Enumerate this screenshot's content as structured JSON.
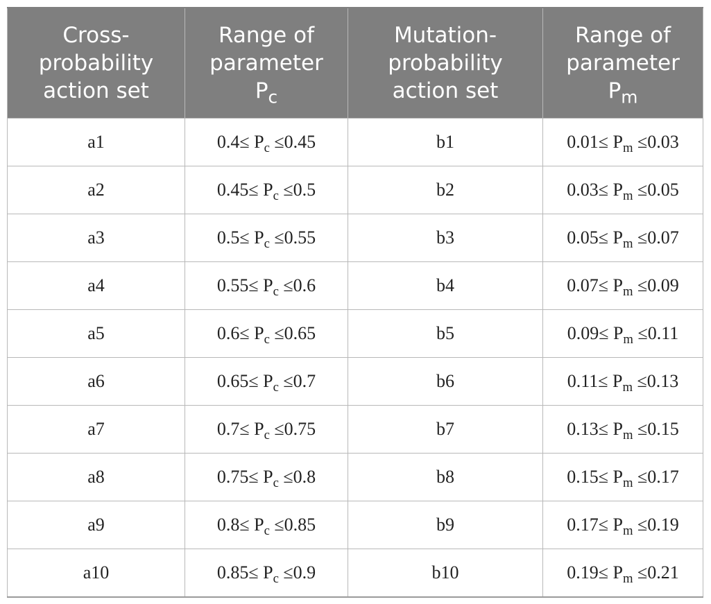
{
  "table": {
    "headers": [
      {
        "main": "Cross-\nprobability\naction set",
        "sub": ""
      },
      {
        "main": "Range of\nparameter\nP",
        "sub": "c"
      },
      {
        "main": "Mutation-\nprobability\naction set",
        "sub": ""
      },
      {
        "main": "Range of\nparameter\nP",
        "sub": "m"
      }
    ],
    "rows": [
      {
        "cross": "a1",
        "pc_lo": "0.4≤ P",
        "pc_sub": "c",
        "pc_hi": " ≤0.45",
        "mut": "b1",
        "pm_lo": "0.01≤ P",
        "pm_sub": "m",
        "pm_hi": " ≤0.03"
      },
      {
        "cross": "a2",
        "pc_lo": "0.45≤ P",
        "pc_sub": "c",
        "pc_hi": " ≤0.5",
        "mut": "b2",
        "pm_lo": "0.03≤ P",
        "pm_sub": "m",
        "pm_hi": " ≤0.05"
      },
      {
        "cross": "a3",
        "pc_lo": "0.5≤ P",
        "pc_sub": "c",
        "pc_hi": " ≤0.55",
        "mut": "b3",
        "pm_lo": "0.05≤ P",
        "pm_sub": "m",
        "pm_hi": " ≤0.07"
      },
      {
        "cross": "a4",
        "pc_lo": "0.55≤ P",
        "pc_sub": "c",
        "pc_hi": " ≤0.6",
        "mut": "b4",
        "pm_lo": "0.07≤ P",
        "pm_sub": "m",
        "pm_hi": " ≤0.09"
      },
      {
        "cross": "a5",
        "pc_lo": "0.6≤ P",
        "pc_sub": "c",
        "pc_hi": " ≤0.65",
        "mut": "b5",
        "pm_lo": "0.09≤ P",
        "pm_sub": "m",
        "pm_hi": " ≤0.11"
      },
      {
        "cross": "a6",
        "pc_lo": "0.65≤ P",
        "pc_sub": "c",
        "pc_hi": " ≤0.7",
        "mut": "b6",
        "pm_lo": "0.11≤ P",
        "pm_sub": "m",
        "pm_hi": " ≤0.13"
      },
      {
        "cross": "a7",
        "pc_lo": "0.7≤ P",
        "pc_sub": "c",
        "pc_hi": " ≤0.75",
        "mut": "b7",
        "pm_lo": "0.13≤ P",
        "pm_sub": "m",
        "pm_hi": " ≤0.15"
      },
      {
        "cross": "a8",
        "pc_lo": "0.75≤ P",
        "pc_sub": "c",
        "pc_hi": " ≤0.8",
        "mut": "b8",
        "pm_lo": "0.15≤ P",
        "pm_sub": "m",
        "pm_hi": " ≤0.17"
      },
      {
        "cross": "a9",
        "pc_lo": "0.8≤ P",
        "pc_sub": "c",
        "pc_hi": " ≤0.85",
        "mut": "b9",
        "pm_lo": "0.17≤ P",
        "pm_sub": "m",
        "pm_hi": " ≤0.19"
      },
      {
        "cross": "a10",
        "pc_lo": "0.85≤ P",
        "pc_sub": "c",
        "pc_hi": " ≤0.9",
        "mut": "b10",
        "pm_lo": "0.19≤ P",
        "pm_sub": "m",
        "pm_hi": " ≤0.21"
      }
    ]
  }
}
